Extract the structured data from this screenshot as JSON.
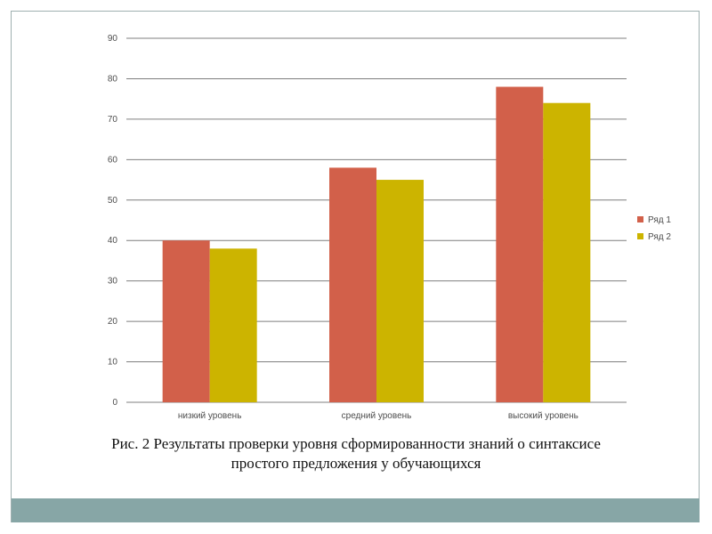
{
  "chart_data": {
    "type": "bar",
    "categories": [
      "низкий уровень",
      "средний уровень",
      "высокий уровень"
    ],
    "series": [
      {
        "name": "Ряд 1",
        "values": [
          40,
          58,
          78
        ],
        "color": "#d2604a"
      },
      {
        "name": "Ряд 2",
        "values": [
          38,
          55,
          74
        ],
        "color": "#ccb400"
      }
    ],
    "ylim": [
      0,
      90
    ],
    "yticks": [
      0,
      10,
      20,
      30,
      40,
      50,
      60,
      70,
      80,
      90
    ],
    "grid": true,
    "legend_position": "right"
  },
  "caption": {
    "line1": "Рис. 2 Результаты проверки уровня сформированности знаний о    синтаксисе",
    "line2": "простого предложения у обучающихся"
  },
  "colors": {
    "frame_border": "#9fb0b0",
    "bottom_band": "#87a6a6",
    "gridline": "#7f7f7f"
  }
}
